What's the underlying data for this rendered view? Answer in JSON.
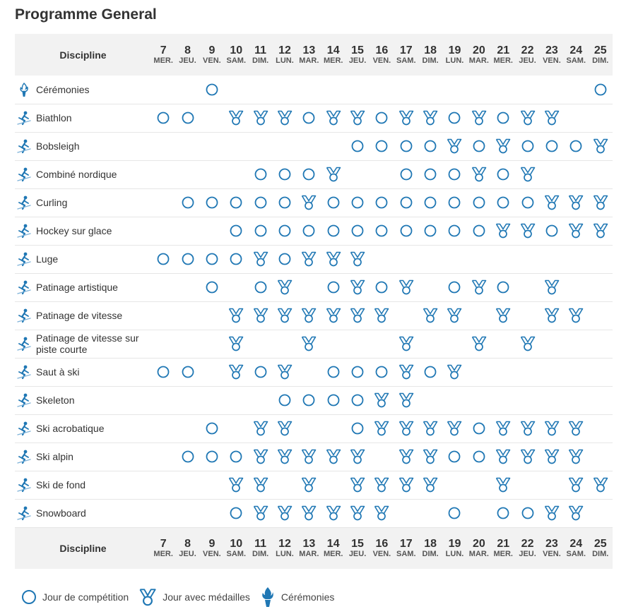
{
  "page_title": "Programme General",
  "discipline_header": "Discipline",
  "days": [
    {
      "num": "7",
      "abbr": "MER."
    },
    {
      "num": "8",
      "abbr": "JEU."
    },
    {
      "num": "9",
      "abbr": "VEN."
    },
    {
      "num": "10",
      "abbr": "SAM."
    },
    {
      "num": "11",
      "abbr": "DIM."
    },
    {
      "num": "12",
      "abbr": "LUN."
    },
    {
      "num": "13",
      "abbr": "MAR."
    },
    {
      "num": "14",
      "abbr": "MER."
    },
    {
      "num": "15",
      "abbr": "JEU."
    },
    {
      "num": "16",
      "abbr": "VEN."
    },
    {
      "num": "17",
      "abbr": "SAM."
    },
    {
      "num": "18",
      "abbr": "DIM."
    },
    {
      "num": "19",
      "abbr": "LUN."
    },
    {
      "num": "20",
      "abbr": "MAR."
    },
    {
      "num": "21",
      "abbr": "MER."
    },
    {
      "num": "22",
      "abbr": "JEU."
    },
    {
      "num": "23",
      "abbr": "VEN."
    },
    {
      "num": "24",
      "abbr": "SAM."
    },
    {
      "num": "25",
      "abbr": "DIM."
    }
  ],
  "sports": [
    {
      "name": "Cérémonies",
      "icon": "ceremony-torch-icon",
      "days": "..C...............C"
    },
    {
      "name": "Biathlon",
      "icon": "biathlon-icon",
      "days": "CC.MMMCMMCMMCMCMM.."
    },
    {
      "name": "Bobsleigh",
      "icon": "bobsleigh-icon",
      "days": "........CCCCMCMCCCM"
    },
    {
      "name": "Combiné nordique",
      "icon": "nordic-combined-icon",
      "days": "....CCCM..CCCMCM..."
    },
    {
      "name": "Curling",
      "icon": "curling-icon",
      "days": ".CCCCCMCCCCCCCCCMMM"
    },
    {
      "name": "Hockey sur glace",
      "icon": "ice-hockey-icon",
      "days": "...CCCCCCCCCCCMMCMM"
    },
    {
      "name": "Luge",
      "icon": "luge-icon",
      "days": "CCCCMCMMM.........."
    },
    {
      "name": "Patinage artistique",
      "icon": "figure-skating-icon",
      "days": "..C.CM.CMCM.CMC.M.."
    },
    {
      "name": "Patinage de vitesse",
      "icon": "speed-skating-icon",
      "days": "...MMMMMMM.MM.M.MM."
    },
    {
      "name": "Patinage de vitesse sur piste courte",
      "icon": "short-track-icon",
      "days": "...M..M...M..M.M..."
    },
    {
      "name": "Saut à ski",
      "icon": "ski-jumping-icon",
      "days": "CC.MCM.CCCMCM......"
    },
    {
      "name": "Skeleton",
      "icon": "skeleton-icon",
      "days": ".....CCCCMM........"
    },
    {
      "name": "Ski acrobatique",
      "icon": "freestyle-skiing-icon",
      "days": "..C.MM..CMMMMCMMMM."
    },
    {
      "name": "Ski alpin",
      "icon": "alpine-skiing-icon",
      "days": ".CCCMMMMM.MMCCMMMM."
    },
    {
      "name": "Ski de fond",
      "icon": "cross-country-skiing-icon",
      "days": "...MM.M.MMMM..M..MM"
    },
    {
      "name": "Snowboard",
      "icon": "snowboard-icon",
      "days": "...CMMMMMM..C.CCMM."
    }
  ],
  "legend": {
    "competition": "Jour de compétition",
    "medals": "Jour avec médailles",
    "ceremonies": "Cérémonies"
  },
  "colors": {
    "accent": "#1f77b4",
    "header_bg": "#f2f2f2",
    "row_border": "#e6e6e6"
  }
}
